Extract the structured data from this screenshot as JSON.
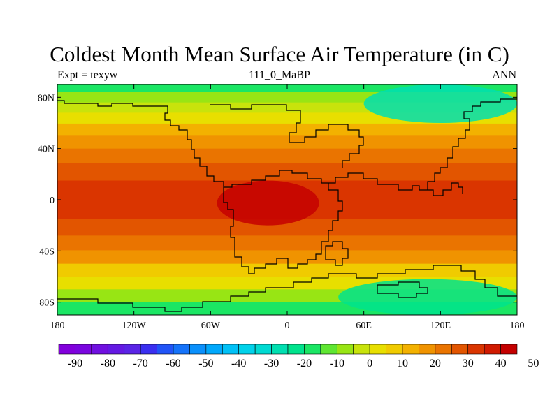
{
  "title": "Coldest Month Mean Surface Air Temperature (in C)",
  "subtitle_left": "Expt = texyw",
  "subtitle_center": "111_0_MaBP",
  "subtitle_right": "ANN",
  "map": {
    "projection": "cylindrical-equidistant",
    "lon_range": [
      -180,
      180
    ],
    "lat_range": [
      -90,
      90
    ],
    "x_ticks": [
      {
        "value": -180,
        "label": "180"
      },
      {
        "value": -120,
        "label": "120W"
      },
      {
        "value": -60,
        "label": "60W"
      },
      {
        "value": 0,
        "label": "0"
      },
      {
        "value": 60,
        "label": "60E"
      },
      {
        "value": 120,
        "label": "120E"
      },
      {
        "value": 180,
        "label": "180"
      }
    ],
    "y_ticks": [
      {
        "value": 80,
        "label": "80N"
      },
      {
        "value": 40,
        "label": "40N"
      },
      {
        "value": 0,
        "label": "0"
      },
      {
        "value": -40,
        "label": "40S"
      },
      {
        "value": -80,
        "label": "80S"
      }
    ],
    "coastlines": true,
    "field": "coldest month mean surface air temperature",
    "zonal_bands_C": [
      {
        "lat": 88,
        "value": -18
      },
      {
        "lat": 80,
        "value": -10
      },
      {
        "lat": 72,
        "value": -2
      },
      {
        "lat": 64,
        "value": 4
      },
      {
        "lat": 55,
        "value": 10
      },
      {
        "lat": 45,
        "value": 16
      },
      {
        "lat": 35,
        "value": 22
      },
      {
        "lat": 22,
        "value": 28
      },
      {
        "lat": 8,
        "value": 33
      },
      {
        "lat": -8,
        "value": 34
      },
      {
        "lat": -22,
        "value": 29
      },
      {
        "lat": -34,
        "value": 22
      },
      {
        "lat": -45,
        "value": 15
      },
      {
        "lat": -55,
        "value": 8
      },
      {
        "lat": -65,
        "value": 1
      },
      {
        "lat": -75,
        "value": -8
      },
      {
        "lat": -85,
        "value": -16
      }
    ],
    "regional_features": [
      {
        "name": "north polar cold region",
        "lon_range": [
          60,
          180
        ],
        "lat_range": [
          60,
          90
        ],
        "value_C": -28
      },
      {
        "name": "south polar cold region",
        "lon_range": [
          40,
          180
        ],
        "lat_range": [
          -90,
          -62
        ],
        "value_C": -22
      },
      {
        "name": "equatorial hot core",
        "lon_range": [
          -55,
          25
        ],
        "lat_range": [
          -20,
          15
        ],
        "value_C": 44
      }
    ]
  },
  "colorbar": {
    "colors": [
      "#8200dc",
      "#7a06df",
      "#7010e0",
      "#6419e3",
      "#5a24e6",
      "#3a2ff0",
      "#2154f7",
      "#1573fa",
      "#0a90fc",
      "#00a8fc",
      "#00c1f7",
      "#00d2ea",
      "#00dad2",
      "#00dfb0",
      "#00e38c",
      "#1be664",
      "#5fe632",
      "#98e514",
      "#c8e30c",
      "#e8df00",
      "#f0cb00",
      "#f3b100",
      "#f09300",
      "#ea7400",
      "#e25500",
      "#da3500",
      "#d01a00",
      "#c40000"
    ],
    "ticks": [
      {
        "index": 1,
        "label": "-90"
      },
      {
        "index": 3,
        "label": "-80"
      },
      {
        "index": 5,
        "label": "-70"
      },
      {
        "index": 7,
        "label": "-60"
      },
      {
        "index": 9,
        "label": "-50"
      },
      {
        "index": 11,
        "label": "-40"
      },
      {
        "index": 13,
        "label": "-30"
      },
      {
        "index": 15,
        "label": "-20"
      },
      {
        "index": 17,
        "label": "-10"
      },
      {
        "index": 19,
        "label": "0"
      },
      {
        "index": 21,
        "label": "10"
      },
      {
        "index": 23,
        "label": "20"
      },
      {
        "index": 25,
        "label": "30"
      },
      {
        "index": 27,
        "label": "40"
      },
      {
        "index": 29,
        "label": "50"
      }
    ]
  }
}
